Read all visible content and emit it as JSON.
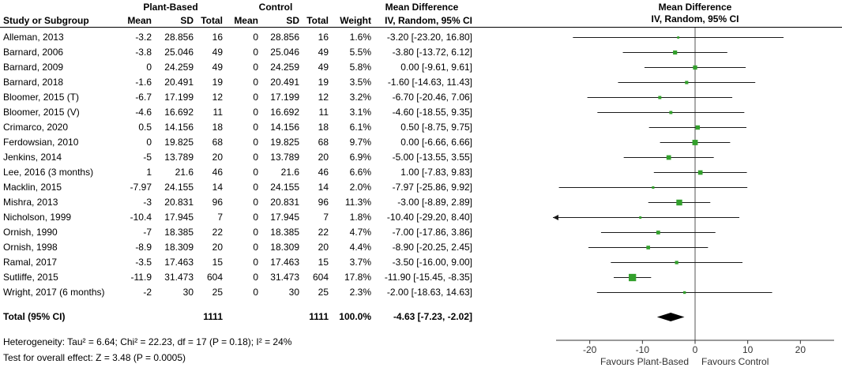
{
  "header": {
    "group_plant": "Plant-Based",
    "group_control": "Control",
    "md_col_title": "Mean Difference",
    "md_plot_title": "Mean Difference",
    "sub_method": "IV, Random, 95% CI",
    "sub_method_plot": "IV, Random, 95% CI",
    "col_study": "Study or Subgroup",
    "col_mean": "Mean",
    "col_sd": "SD",
    "col_total": "Total",
    "col_weight": "Weight"
  },
  "chart_data": {
    "type": "forest",
    "effect_measure": "Mean Difference",
    "model": "IV, Random, 95% CI",
    "studies": [
      {
        "name": "Alleman, 2013",
        "mean1": "-3.2",
        "sd1": "28.856",
        "n1": "16",
        "mean2": "0",
        "sd2": "28.856",
        "n2": "16",
        "weight": "1.6%",
        "w": 1.6,
        "md": -3.2,
        "lo": -23.2,
        "hi": 16.8,
        "ci_label": "-3.20 [-23.20, 16.80]"
      },
      {
        "name": "Barnard, 2006",
        "mean1": "-3.8",
        "sd1": "25.046",
        "n1": "49",
        "mean2": "0",
        "sd2": "25.046",
        "n2": "49",
        "weight": "5.5%",
        "w": 5.5,
        "md": -3.8,
        "lo": -13.72,
        "hi": 6.12,
        "ci_label": "-3.80 [-13.72, 6.12]"
      },
      {
        "name": "Barnard, 2009",
        "mean1": "0",
        "sd1": "24.259",
        "n1": "49",
        "mean2": "0",
        "sd2": "24.259",
        "n2": "49",
        "weight": "5.8%",
        "w": 5.8,
        "md": 0,
        "lo": -9.61,
        "hi": 9.61,
        "ci_label": "0.00 [-9.61, 9.61]"
      },
      {
        "name": "Barnard, 2018",
        "mean1": "-1.6",
        "sd1": "20.491",
        "n1": "19",
        "mean2": "0",
        "sd2": "20.491",
        "n2": "19",
        "weight": "3.5%",
        "w": 3.5,
        "md": -1.6,
        "lo": -14.63,
        "hi": 11.43,
        "ci_label": "-1.60 [-14.63, 11.43]"
      },
      {
        "name": "Bloomer, 2015 (T)",
        "mean1": "-6.7",
        "sd1": "17.199",
        "n1": "12",
        "mean2": "0",
        "sd2": "17.199",
        "n2": "12",
        "weight": "3.2%",
        "w": 3.2,
        "md": -6.7,
        "lo": -20.46,
        "hi": 7.06,
        "ci_label": "-6.70 [-20.46, 7.06]"
      },
      {
        "name": "Bloomer, 2015 (V)",
        "mean1": "-4.6",
        "sd1": "16.692",
        "n1": "11",
        "mean2": "0",
        "sd2": "16.692",
        "n2": "11",
        "weight": "3.1%",
        "w": 3.1,
        "md": -4.6,
        "lo": -18.55,
        "hi": 9.35,
        "ci_label": "-4.60 [-18.55, 9.35]"
      },
      {
        "name": "Crimarco, 2020",
        "mean1": "0.5",
        "sd1": "14.156",
        "n1": "18",
        "mean2": "0",
        "sd2": "14.156",
        "n2": "18",
        "weight": "6.1%",
        "w": 6.1,
        "md": 0.5,
        "lo": -8.75,
        "hi": 9.75,
        "ci_label": "0.50 [-8.75, 9.75]"
      },
      {
        "name": "Ferdowsian, 2010",
        "mean1": "0",
        "sd1": "19.825",
        "n1": "68",
        "mean2": "0",
        "sd2": "19.825",
        "n2": "68",
        "weight": "9.7%",
        "w": 9.7,
        "md": 0,
        "lo": -6.66,
        "hi": 6.66,
        "ci_label": "0.00 [-6.66, 6.66]"
      },
      {
        "name": "Jenkins, 2014",
        "mean1": "-5",
        "sd1": "13.789",
        "n1": "20",
        "mean2": "0",
        "sd2": "13.789",
        "n2": "20",
        "weight": "6.9%",
        "w": 6.9,
        "md": -5,
        "lo": -13.55,
        "hi": 3.55,
        "ci_label": "-5.00 [-13.55, 3.55]"
      },
      {
        "name": "Lee, 2016 (3 months)",
        "mean1": "1",
        "sd1": "21.6",
        "n1": "46",
        "mean2": "0",
        "sd2": "21.6",
        "n2": "46",
        "weight": "6.6%",
        "w": 6.6,
        "md": 1,
        "lo": -7.83,
        "hi": 9.83,
        "ci_label": "1.00 [-7.83, 9.83]"
      },
      {
        "name": "Macklin, 2015",
        "mean1": "-7.97",
        "sd1": "24.155",
        "n1": "14",
        "mean2": "0",
        "sd2": "24.155",
        "n2": "14",
        "weight": "2.0%",
        "w": 2.0,
        "md": -7.97,
        "lo": -25.86,
        "hi": 9.92,
        "ci_label": "-7.97 [-25.86, 9.92]"
      },
      {
        "name": "Mishra, 2013",
        "mean1": "-3",
        "sd1": "20.831",
        "n1": "96",
        "mean2": "0",
        "sd2": "20.831",
        "n2": "96",
        "weight": "11.3%",
        "w": 11.3,
        "md": -3,
        "lo": -8.89,
        "hi": 2.89,
        "ci_label": "-3.00 [-8.89, 2.89]"
      },
      {
        "name": "Nicholson, 1999",
        "mean1": "-10.4",
        "sd1": "17.945",
        "n1": "7",
        "mean2": "0",
        "sd2": "17.945",
        "n2": "7",
        "weight": "1.8%",
        "w": 1.8,
        "md": -10.4,
        "lo": -29.2,
        "hi": 8.4,
        "ci_label": "-10.40 [-29.20, 8.40]"
      },
      {
        "name": "Ornish, 1990",
        "mean1": "-7",
        "sd1": "18.385",
        "n1": "22",
        "mean2": "0",
        "sd2": "18.385",
        "n2": "22",
        "weight": "4.7%",
        "w": 4.7,
        "md": -7,
        "lo": -17.86,
        "hi": 3.86,
        "ci_label": "-7.00 [-17.86, 3.86]"
      },
      {
        "name": "Ornish, 1998",
        "mean1": "-8.9",
        "sd1": "18.309",
        "n1": "20",
        "mean2": "0",
        "sd2": "18.309",
        "n2": "20",
        "weight": "4.4%",
        "w": 4.4,
        "md": -8.9,
        "lo": -20.25,
        "hi": 2.45,
        "ci_label": "-8.90 [-20.25, 2.45]"
      },
      {
        "name": "Ramal, 2017",
        "mean1": "-3.5",
        "sd1": "17.463",
        "n1": "15",
        "mean2": "0",
        "sd2": "17.463",
        "n2": "15",
        "weight": "3.7%",
        "w": 3.7,
        "md": -3.5,
        "lo": -16.0,
        "hi": 9.0,
        "ci_label": "-3.50 [-16.00, 9.00]"
      },
      {
        "name": "Sutliffe, 2015",
        "mean1": "-11.9",
        "sd1": "31.473",
        "n1": "604",
        "mean2": "0",
        "sd2": "31.473",
        "n2": "604",
        "weight": "17.8%",
        "w": 17.8,
        "md": -11.9,
        "lo": -15.45,
        "hi": -8.35,
        "ci_label": "-11.90 [-15.45, -8.35]"
      },
      {
        "name": "Wright, 2017 (6 months)",
        "mean1": "-2",
        "sd1": "30",
        "n1": "25",
        "mean2": "0",
        "sd2": "30",
        "n2": "25",
        "weight": "2.3%",
        "w": 2.3,
        "md": -2,
        "lo": -18.63,
        "hi": 14.63,
        "ci_label": "-2.00 [-18.63, 14.63]"
      }
    ],
    "total": {
      "label": "Total (95% CI)",
      "n1": "1111",
      "n2": "1111",
      "weight": "100.0%",
      "ci_label": "-4.63 [-7.23, -2.02]",
      "md": -4.63,
      "lo": -7.23,
      "hi": -2.02
    },
    "axis": {
      "ticks": [
        -20,
        -10,
        0,
        10,
        20
      ],
      "xmin": -27,
      "xmax": 27,
      "left_label": "Favours Plant-Based",
      "right_label": "Favours Control"
    }
  },
  "footer": {
    "heterogeneity": "Heterogeneity: Tau² = 6.64; Chi² = 22.23, df = 17 (P = 0.18); I² = 24%",
    "overall": "Test for overall effect: Z = 3.48 (P = 0.0005)"
  },
  "colors": {
    "marker": "#33a02c",
    "ci_line": "#1a1a1a",
    "diamond": "#000000",
    "zero_line": "#555555",
    "axis": "#333333",
    "axis_text": "#333333"
  }
}
